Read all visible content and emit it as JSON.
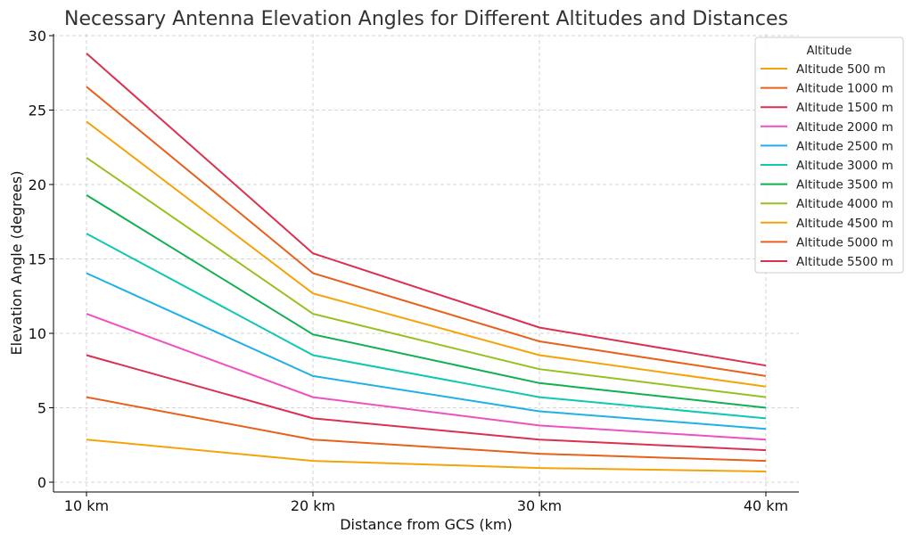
{
  "chart_data": {
    "type": "line",
    "title": "Necessary Antenna Elevation Angles for Different Altitudes and Distances",
    "xlabel": "Distance from GCS (km)",
    "ylabel": "Elevation Angle (degrees)",
    "categories": [
      "10 km",
      "20 km",
      "30 km",
      "40 km"
    ],
    "ylim": [
      0,
      30
    ],
    "yticks": [
      "0",
      "5",
      "10",
      "15",
      "20",
      "25",
      "30"
    ],
    "grid": true,
    "legend": {
      "title": "Altitude",
      "placement": "top-right"
    },
    "series": [
      {
        "name": "Altitude 500 m",
        "color": "#f5a30a",
        "values": [
          2.86,
          1.43,
          0.95,
          0.72
        ]
      },
      {
        "name": "Altitude 1000 m",
        "color": "#e8601c",
        "values": [
          5.71,
          2.86,
          1.91,
          1.43
        ]
      },
      {
        "name": "Altitude 1500 m",
        "color": "#dc3050",
        "values": [
          8.53,
          4.29,
          2.86,
          2.15
        ]
      },
      {
        "name": "Altitude 2000 m",
        "color": "#f050c0",
        "values": [
          11.31,
          5.71,
          3.81,
          2.86
        ]
      },
      {
        "name": "Altitude 2500 m",
        "color": "#20b0e8",
        "values": [
          14.04,
          7.13,
          4.76,
          3.58
        ]
      },
      {
        "name": "Altitude 3000 m",
        "color": "#10c8b0",
        "values": [
          16.7,
          8.53,
          5.71,
          4.29
        ]
      },
      {
        "name": "Altitude 3500 m",
        "color": "#10b050",
        "values": [
          19.29,
          9.93,
          6.66,
          5.0
        ]
      },
      {
        "name": "Altitude 4000 m",
        "color": "#98c020",
        "values": [
          21.8,
          11.31,
          7.59,
          5.71
        ]
      },
      {
        "name": "Altitude 4500 m",
        "color": "#f5a30a",
        "values": [
          24.23,
          12.68,
          8.53,
          6.42
        ]
      },
      {
        "name": "Altitude 5000 m",
        "color": "#e8601c",
        "values": [
          26.57,
          14.04,
          9.46,
          7.13
        ]
      },
      {
        "name": "Altitude 5500 m",
        "color": "#dc3050",
        "values": [
          28.81,
          15.38,
          10.39,
          7.83
        ]
      }
    ]
  }
}
